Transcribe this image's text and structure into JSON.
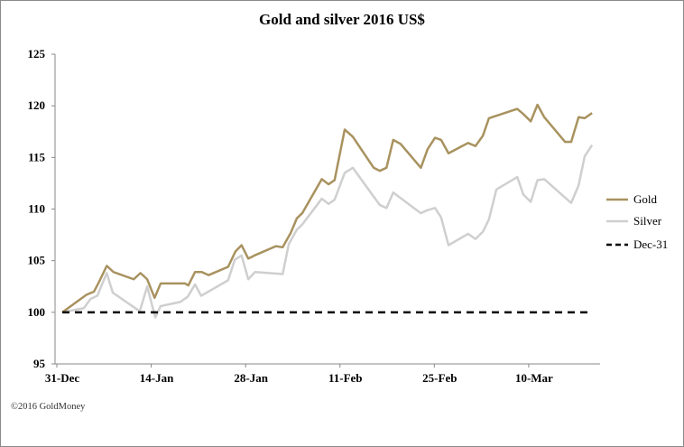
{
  "chart_data": {
    "type": "line",
    "title": "Gold and silver 2016 US$",
    "xlabel": "",
    "ylabel": "",
    "x_unit": "days since 31-Dec-2015",
    "xlim": [
      0,
      79
    ],
    "ylim": [
      95,
      125
    ],
    "yticks": [
      95,
      100,
      105,
      110,
      115,
      120,
      125
    ],
    "xticks": [
      {
        "day": 0,
        "label": "31-Dec"
      },
      {
        "day": 14,
        "label": "14-Jan"
      },
      {
        "day": 28,
        "label": "28-Jan"
      },
      {
        "day": 42,
        "label": "11-Feb"
      },
      {
        "day": 56,
        "label": "25-Feb"
      },
      {
        "day": 70,
        "label": "10-Mar"
      }
    ],
    "grid": false,
    "legend_position": "right",
    "series": [
      {
        "name": "Gold",
        "color": "#a8925f",
        "style": "solid",
        "x": [
          0,
          3.6,
          4.7,
          5.5,
          6.6,
          7.6,
          10.6,
          11.6,
          12.6,
          13.7,
          14.6,
          18.2,
          18.7,
          19.7,
          20.7,
          21.7,
          24.6,
          25.7,
          26.6,
          27.6,
          28.5,
          31.7,
          32.7,
          33.9,
          34.8,
          35.6,
          38.5,
          39.5,
          40.4,
          41.9,
          43.1,
          46.2,
          47.1,
          48.1,
          49.1,
          50.2,
          53.2,
          54.2,
          55.3,
          56.2,
          57.3,
          60.2,
          61.3,
          62.4,
          63.3,
          67.5,
          68.4,
          69.5,
          70.5,
          71.5,
          74.6,
          75.5,
          76.6,
          77.5,
          78.6
        ],
        "values": [
          100,
          101.7,
          102.0,
          103.0,
          104.5,
          103.9,
          103.2,
          103.8,
          103.2,
          101.4,
          102.8,
          102.8,
          102.6,
          103.9,
          103.9,
          103.6,
          104.4,
          105.9,
          106.5,
          105.2,
          105.5,
          106.4,
          106.3,
          107.7,
          109.1,
          109.6,
          112.9,
          112.4,
          112.8,
          117.7,
          117.0,
          114.0,
          113.7,
          114.0,
          116.7,
          116.3,
          114.0,
          115.8,
          116.9,
          116.7,
          115.4,
          116.4,
          116.1,
          117.1,
          118.8,
          119.7,
          119.2,
          118.5,
          120.1,
          118.9,
          116.5,
          116.5,
          118.9,
          118.8,
          119.3
        ]
      },
      {
        "name": "Silver",
        "color": "#cfcfcf",
        "style": "solid",
        "x": [
          0,
          3.2,
          4.2,
          5.2,
          6.6,
          7.5,
          11.5,
          12.6,
          13.8,
          14.6,
          17.5,
          18.6,
          19.7,
          20.6,
          24.6,
          25.6,
          26.6,
          27.6,
          28.6,
          32.7,
          33.6,
          34.8,
          35.6,
          38.5,
          39.5,
          40.4,
          41.9,
          43.1,
          46.2,
          47.1,
          48.1,
          49.1,
          53.2,
          54.2,
          55.3,
          56.2,
          57.3,
          60.2,
          61.3,
          62.4,
          63.3,
          64.4,
          67.5,
          68.4,
          69.5,
          70.5,
          71.5,
          74.6,
          75.5,
          76.6,
          77.5,
          78.6
        ],
        "values": [
          100,
          100.4,
          101.3,
          101.6,
          103.8,
          101.9,
          100.1,
          102.5,
          99.5,
          100.6,
          101.0,
          101.5,
          102.7,
          101.6,
          103.1,
          105.1,
          105.5,
          103.2,
          103.9,
          103.7,
          106.6,
          108.0,
          108.5,
          111.0,
          110.5,
          110.9,
          113.5,
          114.0,
          111.2,
          110.4,
          110.1,
          111.6,
          109.6,
          109.9,
          110.1,
          109.2,
          106.5,
          107.6,
          107.1,
          107.8,
          109.0,
          111.9,
          113.1,
          111.4,
          110.7,
          112.8,
          112.9,
          111.1,
          110.6,
          112.3,
          115.1,
          116.2
        ]
      },
      {
        "name": "Dec-31",
        "color": "#000000",
        "style": "dashed",
        "x": [
          0,
          78.6
        ],
        "values": [
          100,
          100
        ]
      }
    ]
  },
  "footer": {
    "copyright": "©2016 GoldMoney"
  }
}
